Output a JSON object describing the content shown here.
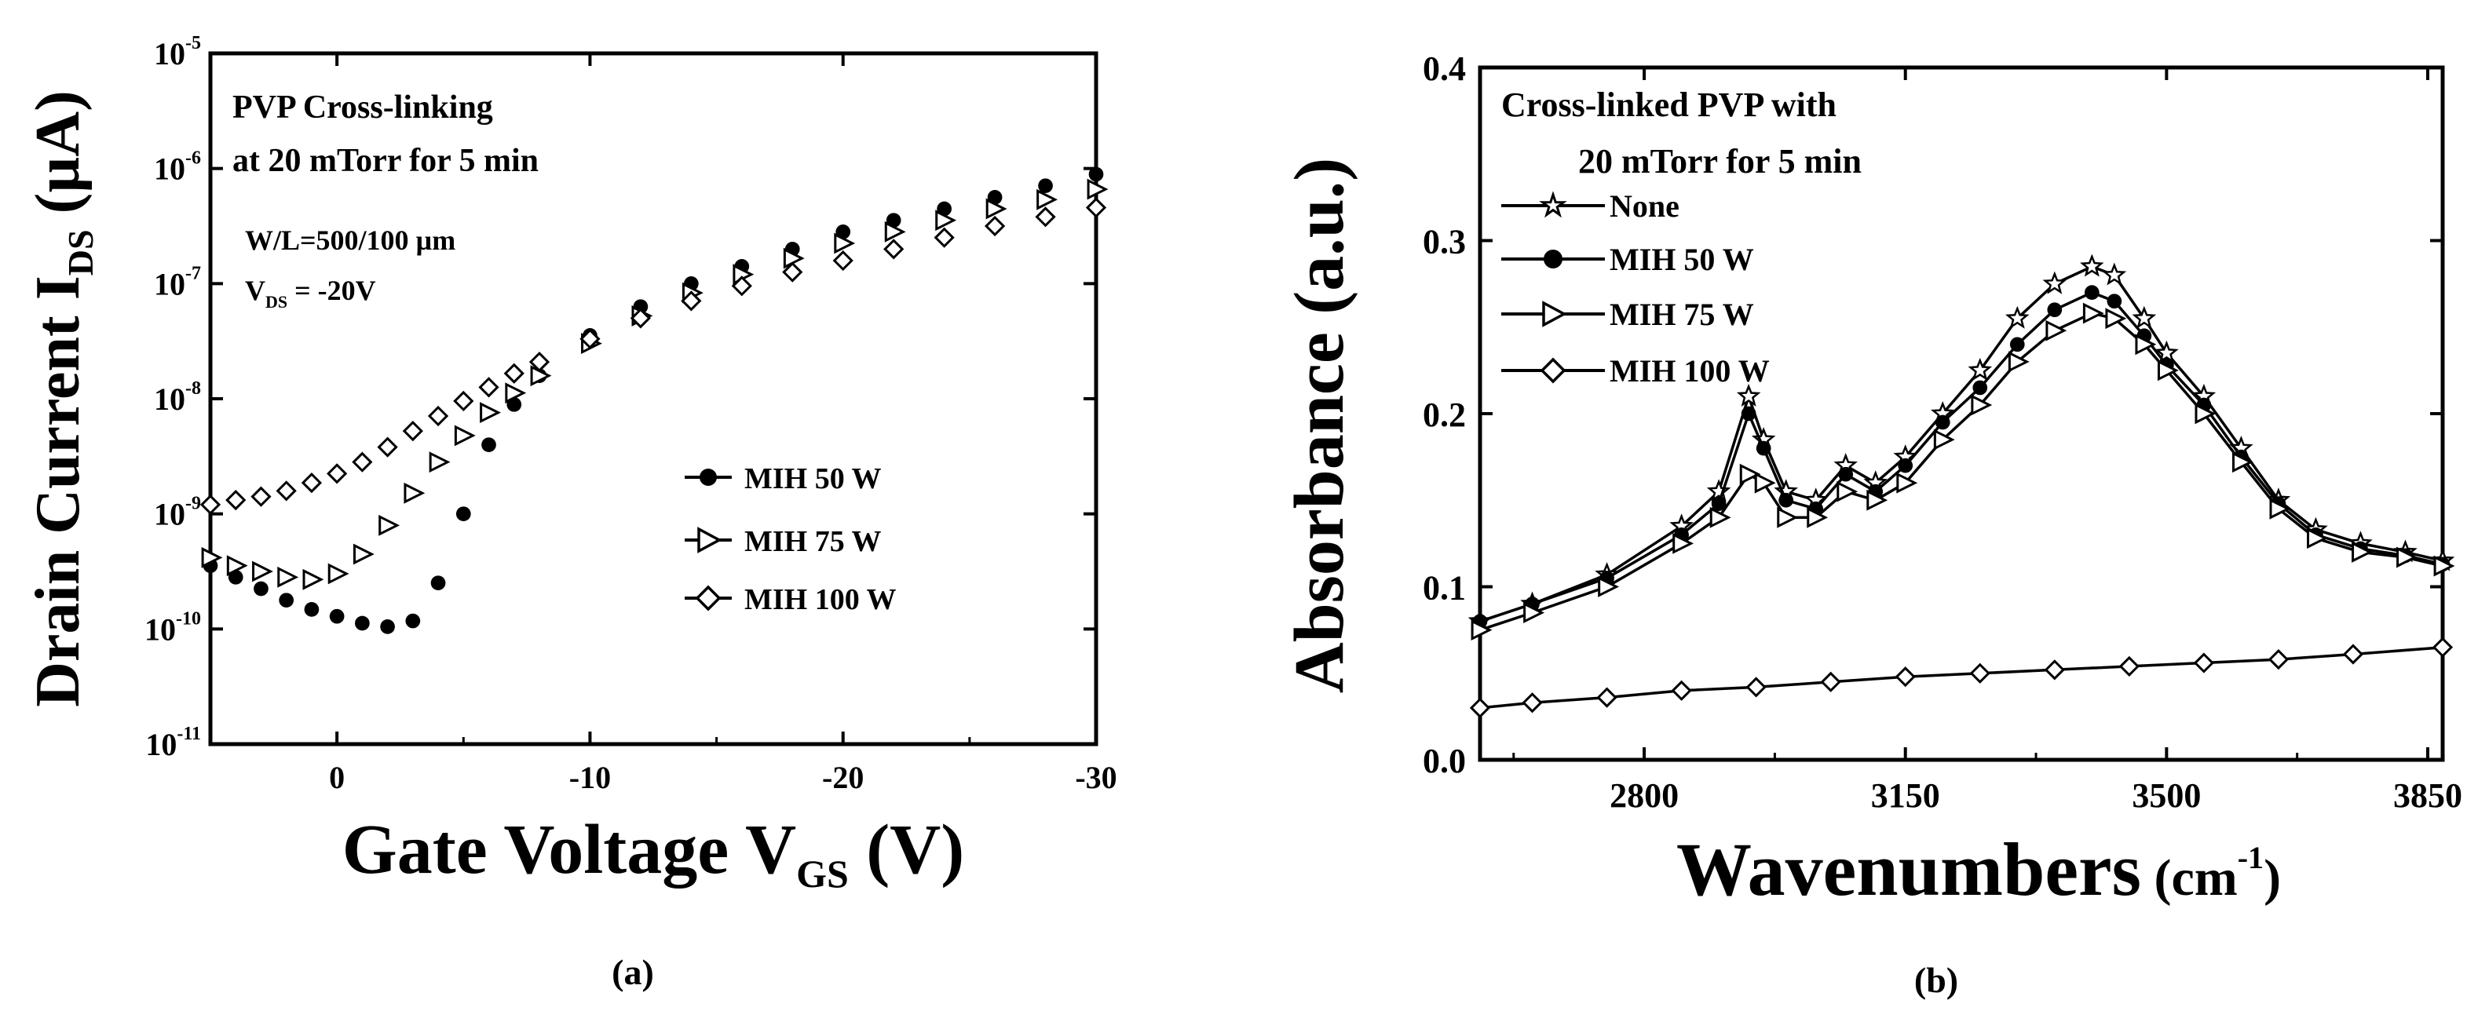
{
  "chart_data": [
    {
      "panel": "(a)",
      "type": "scatter",
      "xlabel": "Gate Voltage V",
      "xlabel_sub": "GS",
      "xlabel_tail": " (V)",
      "ylabel": "Drain Current I",
      "ylabel_sub": "DS",
      "ylabel_tail": " (µA)",
      "y_scale": "log",
      "xlim": [
        5,
        -30
      ],
      "ylim_exp": [
        -11,
        -5
      ],
      "x_ticks": [
        0,
        -10,
        -20,
        -30
      ],
      "x_tick_labels": [
        "0",
        "-10",
        "-20",
        "-30"
      ],
      "y_tick_exponents": [
        -11,
        -10,
        -9,
        -8,
        -7,
        -6,
        -5
      ],
      "y_tick_base": "10",
      "y_tick_exp_labels": [
        "-11",
        "-10",
        "-9",
        "-8",
        "-7",
        "-6",
        "-5"
      ],
      "annotations": [
        "PVP Cross-linking",
        "at 20 mTorr for 5 min",
        "W/L=500/100 µm"
      ],
      "vds_label": "V",
      "vds_sub": "DS",
      "vds_value": " = -20V",
      "legend_position": "center-right",
      "series": [
        {
          "name": "MIH 50 W",
          "marker": "filled-circle",
          "points": [
            [
              5,
              -9.45
            ],
            [
              4,
              -9.55
            ],
            [
              3,
              -9.65
            ],
            [
              2,
              -9.75
            ],
            [
              1,
              -9.83
            ],
            [
              0,
              -9.89
            ],
            [
              -1,
              -9.95
            ],
            [
              -2,
              -9.98
            ],
            [
              -3,
              -9.93
            ],
            [
              -4,
              -9.6
            ],
            [
              -5,
              -9.0
            ],
            [
              -6,
              -8.4
            ],
            [
              -7,
              -8.05
            ],
            [
              -8,
              -7.8
            ],
            [
              -10,
              -7.45
            ],
            [
              -12,
              -7.2
            ],
            [
              -14,
              -7.0
            ],
            [
              -16,
              -6.85
            ],
            [
              -18,
              -6.7
            ],
            [
              -20,
              -6.55
            ],
            [
              -22,
              -6.45
            ],
            [
              -24,
              -6.35
            ],
            [
              -26,
              -6.25
            ],
            [
              -28,
              -6.15
            ],
            [
              -30,
              -6.05
            ]
          ]
        },
        {
          "name": "MIH 75 W",
          "marker": "open-right-triangle",
          "points": [
            [
              5,
              -9.38
            ],
            [
              4,
              -9.45
            ],
            [
              3,
              -9.5
            ],
            [
              2,
              -9.55
            ],
            [
              1,
              -9.57
            ],
            [
              0,
              -9.52
            ],
            [
              -1,
              -9.35
            ],
            [
              -2,
              -9.1
            ],
            [
              -3,
              -8.82
            ],
            [
              -4,
              -8.55
            ],
            [
              -5,
              -8.32
            ],
            [
              -6,
              -8.12
            ],
            [
              -7,
              -7.95
            ],
            [
              -8,
              -7.8
            ],
            [
              -10,
              -7.52
            ],
            [
              -12,
              -7.28
            ],
            [
              -14,
              -7.08
            ],
            [
              -16,
              -6.92
            ],
            [
              -18,
              -6.78
            ],
            [
              -20,
              -6.65
            ],
            [
              -22,
              -6.55
            ],
            [
              -24,
              -6.45
            ],
            [
              -26,
              -6.35
            ],
            [
              -28,
              -6.27
            ],
            [
              -30,
              -6.18
            ]
          ]
        },
        {
          "name": "MIH 100 W",
          "marker": "open-diamond",
          "points": [
            [
              5,
              -8.92
            ],
            [
              4,
              -8.88
            ],
            [
              3,
              -8.85
            ],
            [
              2,
              -8.8
            ],
            [
              1,
              -8.73
            ],
            [
              0,
              -8.65
            ],
            [
              -1,
              -8.55
            ],
            [
              -2,
              -8.42
            ],
            [
              -3,
              -8.28
            ],
            [
              -4,
              -8.15
            ],
            [
              -5,
              -8.02
            ],
            [
              -6,
              -7.9
            ],
            [
              -7,
              -7.78
            ],
            [
              -8,
              -7.68
            ],
            [
              -10,
              -7.48
            ],
            [
              -12,
              -7.3
            ],
            [
              -14,
              -7.15
            ],
            [
              -16,
              -7.02
            ],
            [
              -18,
              -6.9
            ],
            [
              -20,
              -6.8
            ],
            [
              -22,
              -6.7
            ],
            [
              -24,
              -6.6
            ],
            [
              -26,
              -6.5
            ],
            [
              -28,
              -6.42
            ],
            [
              -30,
              -6.34
            ]
          ]
        }
      ]
    },
    {
      "panel": "(b)",
      "type": "scatter",
      "xlabel": "Wavenumbers",
      "xlabel_unit": " (cm",
      "xlabel_sup": "-1",
      "xlabel_close": ")",
      "ylabel": "Absorbance (a.u.)",
      "xlim": [
        2580,
        3870
      ],
      "ylim": [
        0,
        0.4
      ],
      "x_ticks": [
        2800,
        3150,
        3500,
        3850
      ],
      "x_tick_labels": [
        "2800",
        "3150",
        "3500",
        "3850"
      ],
      "y_ticks": [
        0,
        0.1,
        0.2,
        0.3,
        0.4
      ],
      "y_tick_labels": [
        "0.0",
        "0.1",
        "0.2",
        "0.3",
        "0.4"
      ],
      "annotations": [
        "Cross-linked PVP with",
        "20 mTorr for 5 min"
      ],
      "legend_position": "top-left",
      "series": [
        {
          "name": "None",
          "marker": "open-star",
          "points": [
            [
              2580,
              0.08
            ],
            [
              2650,
              0.09
            ],
            [
              2750,
              0.107
            ],
            [
              2850,
              0.135
            ],
            [
              2900,
              0.155
            ],
            [
              2940,
              0.21
            ],
            [
              2960,
              0.185
            ],
            [
              2990,
              0.155
            ],
            [
              3030,
              0.15
            ],
            [
              3070,
              0.17
            ],
            [
              3110,
              0.16
            ],
            [
              3150,
              0.175
            ],
            [
              3200,
              0.2
            ],
            [
              3250,
              0.225
            ],
            [
              3300,
              0.255
            ],
            [
              3350,
              0.275
            ],
            [
              3400,
              0.285
            ],
            [
              3430,
              0.28
            ],
            [
              3470,
              0.255
            ],
            [
              3500,
              0.235
            ],
            [
              3550,
              0.21
            ],
            [
              3600,
              0.18
            ],
            [
              3650,
              0.15
            ],
            [
              3700,
              0.133
            ],
            [
              3760,
              0.125
            ],
            [
              3820,
              0.12
            ],
            [
              3870,
              0.115
            ]
          ]
        },
        {
          "name": "MIH 50 W",
          "marker": "filled-circle",
          "points": [
            [
              2580,
              0.08
            ],
            [
              2650,
              0.09
            ],
            [
              2750,
              0.105
            ],
            [
              2850,
              0.13
            ],
            [
              2900,
              0.148
            ],
            [
              2940,
              0.2
            ],
            [
              2960,
              0.18
            ],
            [
              2990,
              0.15
            ],
            [
              3030,
              0.145
            ],
            [
              3070,
              0.165
            ],
            [
              3110,
              0.155
            ],
            [
              3150,
              0.17
            ],
            [
              3200,
              0.195
            ],
            [
              3250,
              0.215
            ],
            [
              3300,
              0.24
            ],
            [
              3350,
              0.26
            ],
            [
              3400,
              0.27
            ],
            [
              3430,
              0.265
            ],
            [
              3470,
              0.245
            ],
            [
              3500,
              0.228
            ],
            [
              3550,
              0.205
            ],
            [
              3600,
              0.175
            ],
            [
              3650,
              0.148
            ],
            [
              3700,
              0.13
            ],
            [
              3760,
              0.122
            ],
            [
              3820,
              0.118
            ],
            [
              3870,
              0.113
            ]
          ]
        },
        {
          "name": "MIH 75 W",
          "marker": "open-right-triangle",
          "points": [
            [
              2580,
              0.075
            ],
            [
              2650,
              0.085
            ],
            [
              2750,
              0.1
            ],
            [
              2850,
              0.125
            ],
            [
              2900,
              0.14
            ],
            [
              2940,
              0.165
            ],
            [
              2960,
              0.16
            ],
            [
              2990,
              0.14
            ],
            [
              3030,
              0.14
            ],
            [
              3070,
              0.155
            ],
            [
              3110,
              0.15
            ],
            [
              3150,
              0.16
            ],
            [
              3200,
              0.185
            ],
            [
              3250,
              0.205
            ],
            [
              3300,
              0.23
            ],
            [
              3350,
              0.248
            ],
            [
              3400,
              0.258
            ],
            [
              3430,
              0.255
            ],
            [
              3470,
              0.24
            ],
            [
              3500,
              0.225
            ],
            [
              3550,
              0.2
            ],
            [
              3600,
              0.172
            ],
            [
              3650,
              0.145
            ],
            [
              3700,
              0.128
            ],
            [
              3760,
              0.12
            ],
            [
              3820,
              0.117
            ],
            [
              3870,
              0.112
            ]
          ]
        },
        {
          "name": "MIH 100 W",
          "marker": "open-diamond",
          "points": [
            [
              2580,
              0.03
            ],
            [
              2650,
              0.033
            ],
            [
              2750,
              0.036
            ],
            [
              2850,
              0.04
            ],
            [
              2950,
              0.042
            ],
            [
              3050,
              0.045
            ],
            [
              3150,
              0.048
            ],
            [
              3250,
              0.05
            ],
            [
              3350,
              0.052
            ],
            [
              3450,
              0.054
            ],
            [
              3550,
              0.056
            ],
            [
              3650,
              0.058
            ],
            [
              3750,
              0.061
            ],
            [
              3870,
              0.065
            ]
          ]
        }
      ]
    }
  ]
}
